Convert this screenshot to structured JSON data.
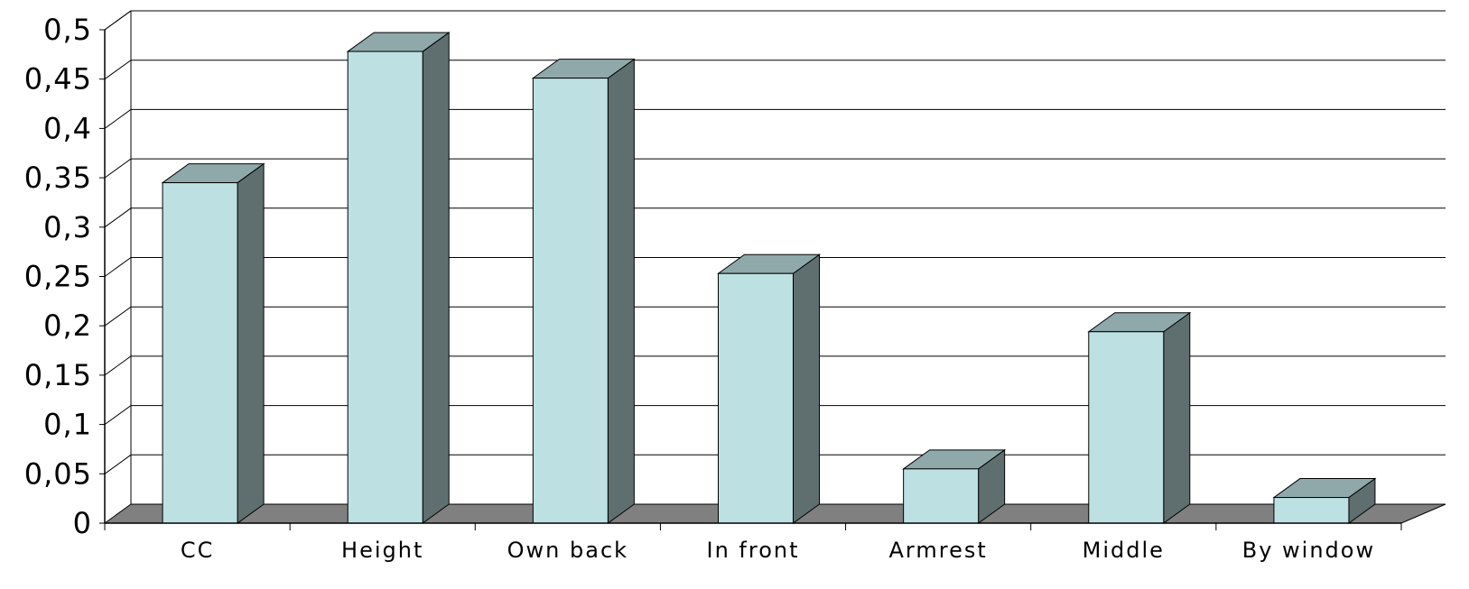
{
  "chart_data": {
    "type": "bar",
    "style": "3d-column",
    "categories": [
      "CC",
      "Height",
      "Own back",
      "In front",
      "Armrest",
      "Middle",
      "By window"
    ],
    "values": [
      0.345,
      0.478,
      0.451,
      0.253,
      0.055,
      0.194,
      0.026
    ],
    "ylim": [
      0,
      0.5
    ],
    "yticks": [
      0,
      0.05,
      0.1,
      0.15,
      0.2,
      0.25,
      0.3,
      0.35,
      0.4,
      0.45,
      0.5
    ],
    "ytick_labels": [
      "0",
      "0,05",
      "0,1",
      "0,15",
      "0,2",
      "0,25",
      "0,3",
      "0,35",
      "0,4",
      "0,45",
      "0,5"
    ],
    "title": "",
    "xlabel": "",
    "ylabel": "",
    "grid": true,
    "legend": "none",
    "colors": {
      "bar_front": "#bde0e3",
      "bar_top": "#8fa9ab",
      "bar_side": "#5f6f70",
      "floor": "#808080",
      "grid": "#000000"
    }
  }
}
